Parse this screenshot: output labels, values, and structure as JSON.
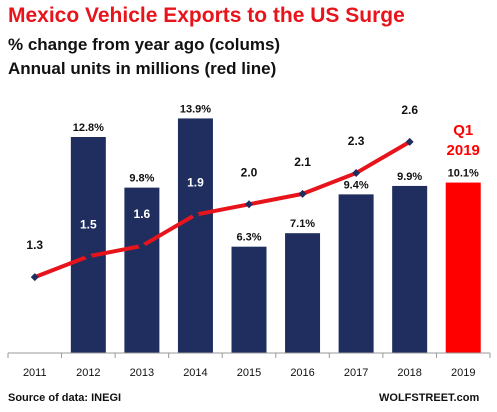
{
  "title": "Mexico Vehicle Exports to the US Surge",
  "subtitle_1": "% change from year ago (colums)",
  "subtitle_2": "Annual units in millions (red line)",
  "source": "Source of data: INEGI",
  "credit": "WOLFSTREET.com",
  "colors": {
    "bar": "#1f2e5e",
    "highlight_bar": "#ff0000",
    "line": "#e8141c",
    "marker": "#1f2e5e",
    "title": "#e8141c"
  },
  "chart_data": {
    "type": "bar",
    "categories": [
      "2011",
      "2012",
      "2013",
      "2014",
      "2015",
      "2016",
      "2017",
      "2018",
      "2019"
    ],
    "series": [
      {
        "type": "bar",
        "values": [
          null,
          12.8,
          9.8,
          13.9,
          6.3,
          7.1,
          9.4,
          9.9,
          10.1
        ],
        "labels": [
          "",
          "12.8%",
          "9.8%",
          "13.9%",
          "6.3%",
          "7.1%",
          "9.4%",
          "9.9%",
          "10.1%"
        ]
      },
      {
        "type": "line",
        "values": [
          1.3,
          1.5,
          1.6,
          1.9,
          2.0,
          2.1,
          2.3,
          2.6,
          null
        ],
        "labels": [
          "1.3",
          "1.5",
          "1.6",
          "1.9",
          "2.0",
          "2.1",
          "2.3",
          "2.6",
          ""
        ]
      }
    ],
    "highlight": {
      "category": "2019",
      "label_line1": "Q1",
      "label_line2": "2019"
    },
    "bar_ylim": [
      0,
      16
    ],
    "line_ylim": [
      0.6,
      3.05
    ],
    "grid": false,
    "legend": "none"
  }
}
